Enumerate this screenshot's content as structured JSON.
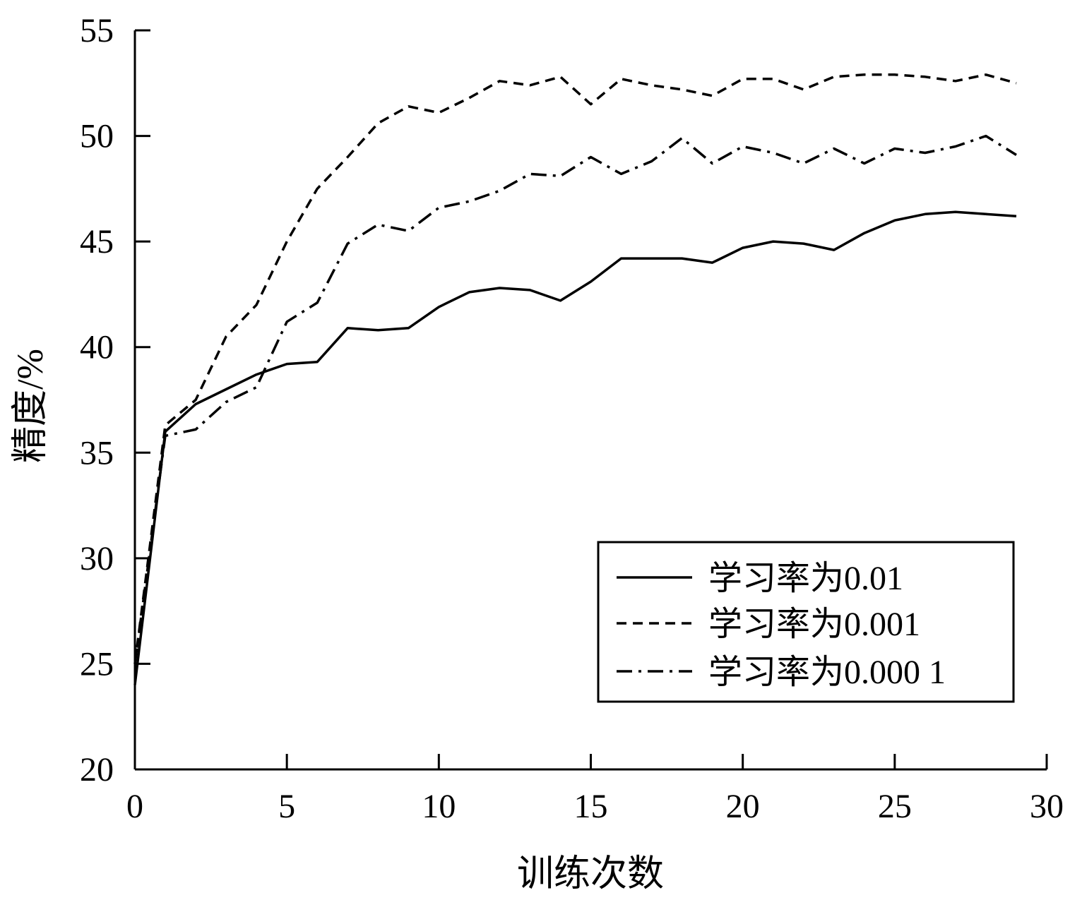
{
  "chart_data": {
    "type": "line",
    "xlabel": "训练次数",
    "ylabel": "精度/%",
    "xlim": [
      0,
      30
    ],
    "ylim": [
      20,
      55
    ],
    "xticks": [
      0,
      5,
      10,
      15,
      20,
      25,
      30
    ],
    "yticks": [
      20,
      25,
      30,
      35,
      40,
      45,
      50,
      55
    ],
    "grid": false,
    "legend": "bottom-right",
    "x": [
      0,
      1,
      2,
      3,
      4,
      5,
      6,
      7,
      8,
      9,
      10,
      11,
      12,
      13,
      14,
      15,
      16,
      17,
      18,
      19,
      20,
      21,
      22,
      23,
      24,
      25,
      26,
      27,
      28,
      29
    ],
    "series": [
      {
        "name": "学习率为0.01",
        "dash": "solid",
        "values": [
          24.0,
          36.0,
          37.3,
          38.0,
          38.7,
          39.2,
          39.3,
          40.9,
          40.8,
          40.9,
          41.9,
          42.6,
          42.8,
          42.7,
          42.2,
          43.1,
          44.2,
          44.2,
          44.2,
          44.0,
          44.7,
          45.0,
          44.9,
          44.6,
          45.4,
          46.0,
          46.3,
          46.4,
          46.3,
          46.2
        ]
      },
      {
        "name": "学习率为0.001",
        "dash": "dashed",
        "values": [
          25.0,
          36.3,
          37.5,
          40.5,
          42.0,
          45.0,
          47.5,
          49.0,
          50.6,
          51.4,
          51.1,
          51.8,
          52.6,
          52.4,
          52.8,
          51.5,
          52.7,
          52.4,
          52.2,
          51.9,
          52.7,
          52.7,
          52.2,
          52.8,
          52.9,
          52.9,
          52.8,
          52.6,
          52.9,
          52.5
        ]
      },
      {
        "name": "学习率为0.000 1",
        "dash": "dashdot",
        "values": [
          25.0,
          35.8,
          36.1,
          37.4,
          38.1,
          41.2,
          42.1,
          44.9,
          45.8,
          45.5,
          46.6,
          46.9,
          47.4,
          48.2,
          48.1,
          49.0,
          48.2,
          48.8,
          49.9,
          48.7,
          49.5,
          49.2,
          48.7,
          49.4,
          48.7,
          49.4,
          49.2,
          49.5,
          50.0,
          49.1
        ]
      }
    ]
  }
}
